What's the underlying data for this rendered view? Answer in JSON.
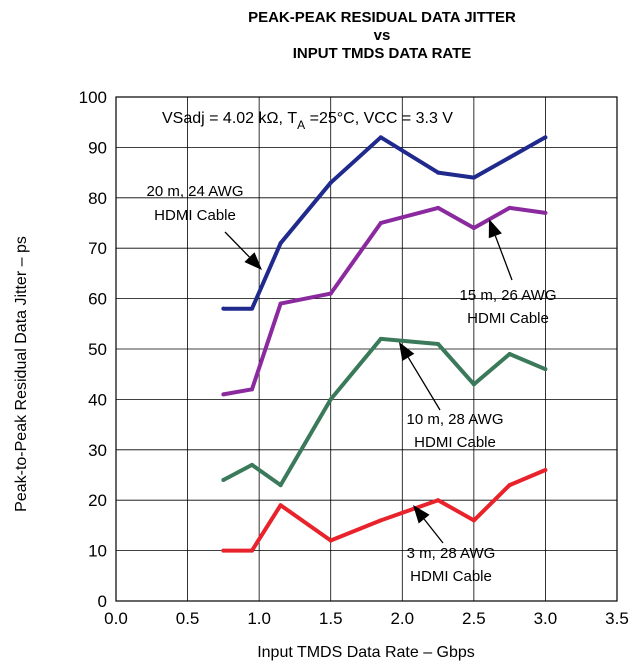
{
  "chart_data": {
    "type": "line",
    "title": [
      "PEAK-PEAK RESIDUAL DATA JITTER",
      "vs",
      "INPUT TMDS DATA RATE"
    ],
    "xlabel": "Input TMDS Data Rate – Gbps",
    "ylabel": "Peak-to-Peak Residual Data Jitter – ps",
    "xlim": [
      0.0,
      3.5
    ],
    "ylim": [
      0,
      100
    ],
    "x_ticks": [
      "0.0",
      "0.5",
      "1.0",
      "1.5",
      "2.0",
      "2.5",
      "3.0",
      "3.5"
    ],
    "y_ticks": [
      "0",
      "10",
      "20",
      "30",
      "40",
      "50",
      "60",
      "70",
      "80",
      "90",
      "100"
    ],
    "grid": true,
    "conditions": {
      "part1": "VSadj = 4.02 kΩ, T",
      "subscript": "A",
      "part2": " =25°C, VCC = 3.3 V"
    },
    "series": [
      {
        "name": "20 m, 24 AWG HDMI Cable",
        "color": "#1f2a8c",
        "x": [
          0.75,
          0.95,
          1.15,
          1.5,
          1.85,
          2.25,
          2.5,
          2.75,
          3.0
        ],
        "y": [
          58,
          58,
          71,
          83,
          92,
          85,
          84,
          88,
          92
        ],
        "label_lines": [
          "20 m, 24 AWG",
          "HDMI Cable"
        ]
      },
      {
        "name": "15 m, 26 AWG HDMI Cable",
        "color": "#8a2a9e",
        "x": [
          0.75,
          0.95,
          1.15,
          1.5,
          1.85,
          2.25,
          2.5,
          2.75,
          3.0
        ],
        "y": [
          41,
          42,
          59,
          61,
          75,
          78,
          74,
          78,
          77
        ],
        "label_lines": [
          "15 m, 26 AWG",
          "HDMI Cable"
        ]
      },
      {
        "name": "10 m, 28 AWG HDMI Cable",
        "color": "#3a7a5a",
        "x": [
          0.75,
          0.95,
          1.15,
          1.5,
          1.85,
          2.25,
          2.5,
          2.75,
          3.0
        ],
        "y": [
          24,
          27,
          23,
          40,
          52,
          51,
          43,
          49,
          46
        ],
        "label_lines": [
          "10 m, 28 AWG",
          "HDMI Cable"
        ]
      },
      {
        "name": "3 m, 28 AWG HDMI Cable",
        "color": "#e8232b",
        "x": [
          0.75,
          0.95,
          1.15,
          1.5,
          1.85,
          2.25,
          2.5,
          2.75,
          3.0
        ],
        "y": [
          10,
          10,
          19,
          12,
          16,
          20,
          16,
          23,
          26
        ],
        "label_lines": [
          "3 m, 28 AWG",
          "HDMI Cable"
        ]
      }
    ]
  }
}
